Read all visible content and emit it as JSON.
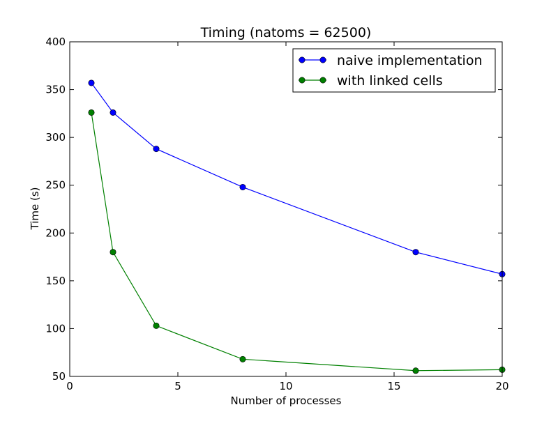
{
  "chart_data": {
    "type": "line",
    "title": "Timing (natoms = 62500)",
    "xlabel": "Number of processes",
    "ylabel": "Time (s)",
    "xlim": [
      0,
      20
    ],
    "ylim": [
      50,
      400
    ],
    "xticks": [
      0,
      5,
      10,
      15,
      20
    ],
    "yticks": [
      50,
      100,
      150,
      200,
      250,
      300,
      350,
      400
    ],
    "grid": false,
    "legend_position": "top-right",
    "series": [
      {
        "name": "naive implementation",
        "color": "#0000ff",
        "marker": "circle",
        "x": [
          1,
          2,
          4,
          8,
          16,
          20
        ],
        "y": [
          357,
          326,
          288,
          248,
          180,
          157
        ]
      },
      {
        "name": "with linked cells",
        "color": "#008000",
        "marker": "circle",
        "x": [
          1,
          2,
          4,
          8,
          16,
          20
        ],
        "y": [
          326,
          180,
          103,
          68,
          56,
          57
        ]
      }
    ]
  }
}
